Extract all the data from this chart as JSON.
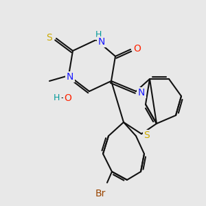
{
  "bg_color": "#e8e8e8",
  "C": "#000000",
  "N": "#1a1aff",
  "O": "#ff2200",
  "S": "#ccaa00",
  "Br": "#994400",
  "H_color": "#009999",
  "bond_color": "#111111",
  "lw": 1.5
}
